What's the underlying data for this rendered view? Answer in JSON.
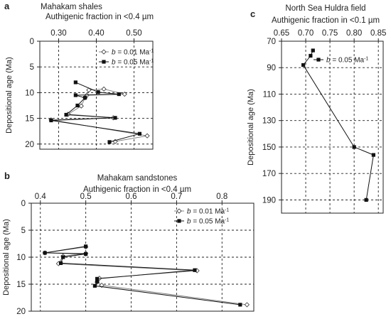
{
  "chart_data": [
    {
      "type": "line",
      "panel_label": "a",
      "title": "Mahakam shales",
      "xlabel": "Authigenic fraction in <0.4 µm",
      "ylabel": "Depositional age (Ma)",
      "xlim": [
        0.25,
        0.55
      ],
      "ylim": [
        0,
        21
      ],
      "y_inverted": true,
      "x_ticks": [
        "0.30",
        "0.40",
        "0.50"
      ],
      "y_ticks": [
        "0",
        "5",
        "10",
        "15",
        "20"
      ],
      "legend_position": "top-right",
      "series": [
        {
          "name_prefix": "b",
          "name_value": " = 0.01 Ma",
          "name_sup": "-1",
          "marker": "diamond",
          "points": [
            [
              0.38,
              9.5
            ],
            [
              0.42,
              9.3
            ],
            [
              0.475,
              10.3
            ],
            [
              0.375,
              10.5
            ],
            [
              0.37,
              11
            ],
            [
              0.36,
              12.6
            ],
            [
              0.325,
              14.2
            ],
            [
              0.445,
              14.9
            ],
            [
              0.28,
              15.3
            ],
            [
              0.535,
              18.4
            ],
            [
              0.45,
              19.5
            ]
          ]
        },
        {
          "name_prefix": "b",
          "name_value": " = 0.05 Ma",
          "name_sup": "-1",
          "marker": "square",
          "points": [
            [
              0.345,
              8
            ],
            [
              0.405,
              9.9
            ],
            [
              0.46,
              10.3
            ],
            [
              0.345,
              10.5
            ],
            [
              0.37,
              11
            ],
            [
              0.35,
              12.5
            ],
            [
              0.32,
              14.3
            ],
            [
              0.45,
              14.9
            ],
            [
              0.28,
              15.4
            ],
            [
              0.515,
              18
            ],
            [
              0.435,
              19.6
            ]
          ]
        }
      ]
    },
    {
      "type": "line",
      "panel_label": "b",
      "title": "Mahakam sandstones",
      "xlabel": "Authigenic fraction in <0.4 µm",
      "ylabel": "Depositional age (Ma)",
      "xlim": [
        0.38,
        0.87
      ],
      "ylim": [
        0,
        20
      ],
      "y_inverted": true,
      "x_ticks": [
        "0.4",
        "0.5",
        "0.6",
        "0.7",
        "0.8"
      ],
      "y_ticks": [
        "0",
        "5",
        "10",
        "15",
        "20"
      ],
      "legend_position": "top-right",
      "series": [
        {
          "name_prefix": "b",
          "name_value": " = 0.01 Ma",
          "name_sup": "-1",
          "marker": "diamond",
          "points": [
            [
              0.5,
              8.1
            ],
            [
              0.41,
              9.2
            ],
            [
              0.5,
              9.3
            ],
            [
              0.45,
              9.8
            ],
            [
              0.44,
              11.2
            ],
            [
              0.745,
              12.5
            ],
            [
              0.53,
              13.9
            ],
            [
              0.525,
              14.6
            ],
            [
              0.535,
              15.2
            ],
            [
              0.855,
              18.8
            ]
          ]
        },
        {
          "name_prefix": "b",
          "name_value": " = 0.05 Ma",
          "name_sup": "-1",
          "marker": "square",
          "points": [
            [
              0.5,
              8
            ],
            [
              0.41,
              9.2
            ],
            [
              0.5,
              9.4
            ],
            [
              0.45,
              10
            ],
            [
              0.445,
              11.1
            ],
            [
              0.74,
              12.4
            ],
            [
              0.525,
              14
            ],
            [
              0.525,
              14.5
            ],
            [
              0.52,
              15.3
            ],
            [
              0.84,
              18.8
            ]
          ]
        }
      ]
    },
    {
      "type": "line",
      "panel_label": "c",
      "title": "North Sea Huldra field",
      "xlabel": "Authigenic fraction in <0.1 µm",
      "ylabel": "Depositional age (Ma)",
      "xlim": [
        0.65,
        0.86
      ],
      "ylim": [
        70,
        200
      ],
      "y_inverted": true,
      "x_ticks": [
        "0.65",
        "0.70",
        "0.75",
        "0.80",
        "0.85"
      ],
      "y_ticks": [
        "70",
        "90",
        "110",
        "130",
        "150",
        "170",
        "190"
      ],
      "legend_position": "top-right",
      "series": [
        {
          "name_prefix": "b",
          "name_value": " = 0.05 Ma",
          "name_sup": "-1",
          "marker": "square",
          "points": [
            [
              0.715,
              77
            ],
            [
              0.71,
              81
            ],
            [
              0.695,
              88
            ],
            [
              0.8,
              150
            ],
            [
              0.84,
              156
            ],
            [
              0.825,
              190
            ]
          ]
        }
      ]
    }
  ]
}
